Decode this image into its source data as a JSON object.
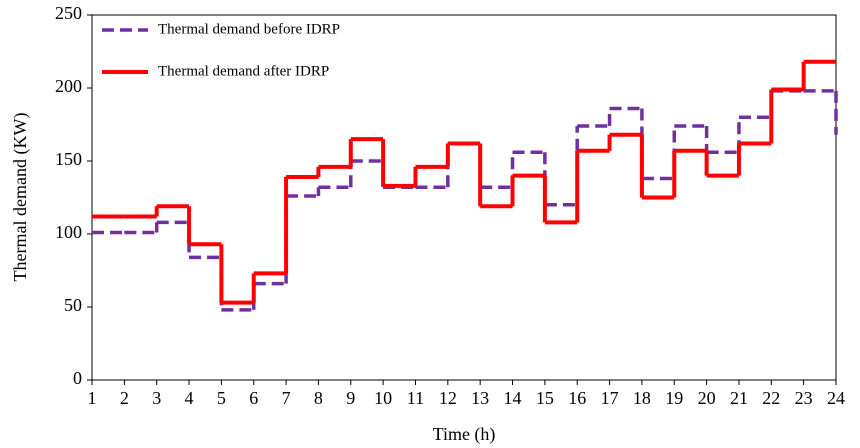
{
  "chart_data": {
    "type": "step",
    "x_label": "Time (h)",
    "y_label": "Thermal demand (KW)",
    "x": [
      1,
      2,
      3,
      4,
      5,
      6,
      7,
      8,
      9,
      10,
      11,
      12,
      13,
      14,
      15,
      16,
      17,
      18,
      19,
      20,
      21,
      22,
      23,
      24
    ],
    "series": [
      {
        "name": "Thermal demand before IDRP",
        "color": "#7030a0",
        "dashed": true,
        "values": [
          101,
          101,
          108,
          84,
          48,
          66,
          126,
          132,
          150,
          132,
          132,
          162,
          132,
          156,
          120,
          174,
          186,
          138,
          174,
          156,
          180,
          198,
          198,
          168
        ]
      },
      {
        "name": "Thermal demand after IDRP",
        "color": "#ff0000",
        "dashed": false,
        "values": [
          112,
          112,
          119,
          93,
          53,
          73,
          139,
          146,
          165,
          133,
          146,
          162,
          119,
          140,
          108,
          157,
          168,
          125,
          157,
          140,
          162,
          199,
          218,
          218
        ]
      }
    ],
    "xlim": [
      1,
      24
    ],
    "xticks": [
      1,
      2,
      3,
      4,
      5,
      6,
      7,
      8,
      9,
      10,
      11,
      12,
      13,
      14,
      15,
      16,
      17,
      18,
      19,
      20,
      21,
      22,
      23,
      24
    ],
    "ylim": [
      0,
      250
    ],
    "yticks": [
      0,
      50,
      100,
      150,
      200,
      250
    ],
    "legend": "upper left"
  }
}
